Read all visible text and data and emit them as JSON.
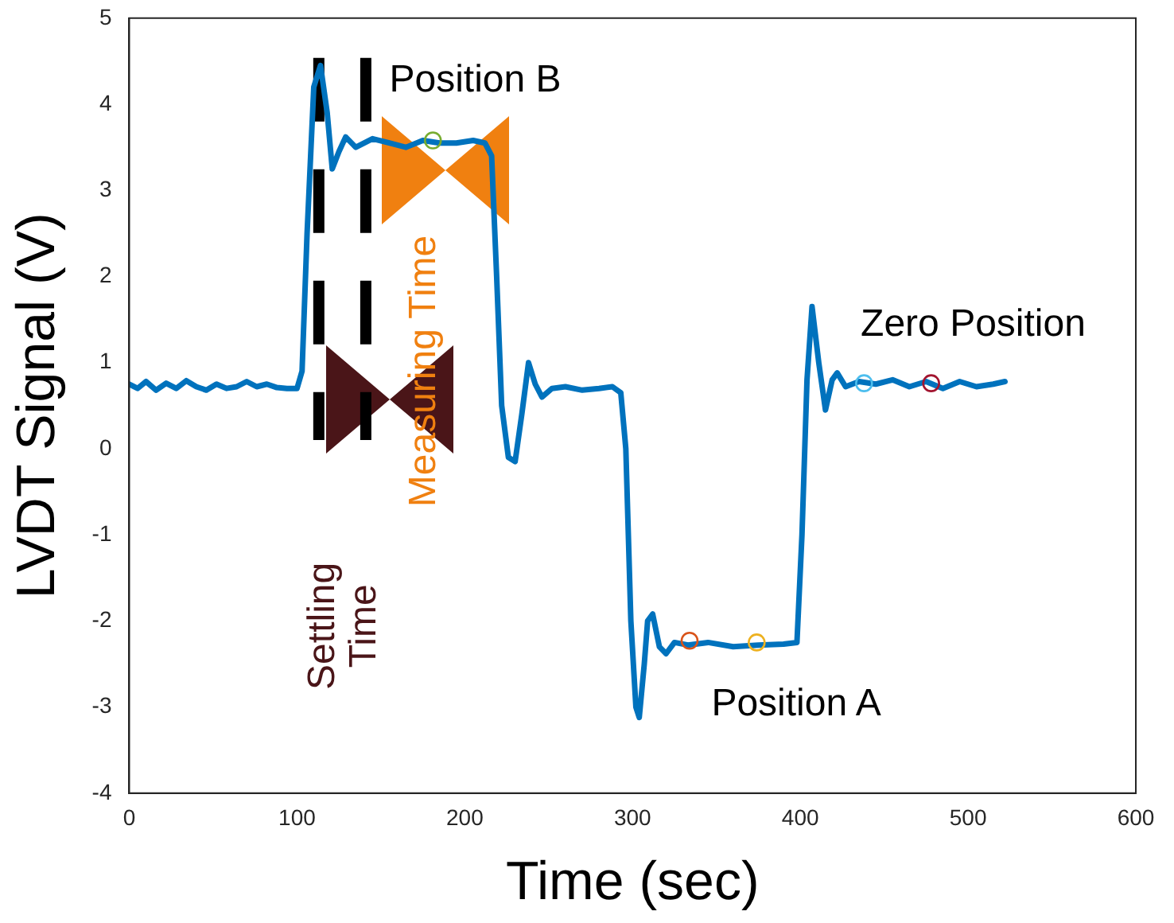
{
  "chart_data": {
    "type": "line",
    "xlabel": "Time (sec)",
    "ylabel": "LVDT Signal (V)",
    "xlim": [
      0,
      600
    ],
    "xticks": [
      0,
      100,
      200,
      300,
      400,
      500,
      600
    ],
    "ylim": [
      -4,
      5
    ],
    "yticks": [
      -4,
      -3,
      -2,
      -1,
      0,
      1,
      2,
      3,
      4,
      5
    ],
    "grid": false,
    "legend": false,
    "series": [
      {
        "color": "#0072bd",
        "x": [
          0,
          5,
          10,
          16,
          22,
          28,
          34,
          40,
          46,
          52,
          58,
          64,
          70,
          76,
          82,
          88,
          94,
          100,
          103,
          106,
          110,
          114,
          118,
          121,
          125,
          129,
          135,
          145,
          155,
          165,
          175,
          185,
          195,
          205,
          212,
          216,
          219,
          222,
          226,
          230,
          234,
          238,
          242,
          246,
          252,
          260,
          270,
          280,
          288,
          293,
          296,
          299,
          302,
          304,
          307,
          309,
          312,
          316,
          320,
          325,
          333,
          345,
          360,
          375,
          390,
          398,
          401,
          404,
          407,
          411,
          415,
          419,
          422,
          427,
          435,
          445,
          455,
          465,
          475,
          485,
          495,
          505,
          515,
          522
        ],
        "values": [
          0.75,
          0.7,
          0.78,
          0.68,
          0.76,
          0.7,
          0.79,
          0.72,
          0.68,
          0.75,
          0.7,
          0.72,
          0.78,
          0.72,
          0.75,
          0.71,
          0.7,
          0.7,
          0.9,
          2.5,
          4.2,
          4.45,
          3.9,
          3.25,
          3.45,
          3.62,
          3.5,
          3.6,
          3.55,
          3.5,
          3.58,
          3.55,
          3.55,
          3.58,
          3.55,
          3.4,
          2.0,
          0.5,
          -0.1,
          -0.15,
          0.4,
          1.0,
          0.75,
          0.6,
          0.7,
          0.72,
          0.68,
          0.7,
          0.72,
          0.65,
          0.0,
          -2.0,
          -3.0,
          -3.12,
          -2.5,
          -2.0,
          -1.92,
          -2.3,
          -2.38,
          -2.25,
          -2.28,
          -2.25,
          -2.3,
          -2.28,
          -2.27,
          -2.25,
          -1.0,
          0.8,
          1.65,
          1.0,
          0.45,
          0.8,
          0.88,
          0.72,
          0.78,
          0.75,
          0.8,
          0.72,
          0.78,
          0.7,
          0.78,
          0.72,
          0.75,
          0.78
        ]
      },
      {
        "type": "scatter",
        "marker": "circle",
        "colors": [
          "#77ac30",
          "#d95319",
          "#edb120",
          "#4dbeee",
          "#a2142f"
        ],
        "x": [
          181,
          334,
          374,
          438,
          478
        ],
        "values": [
          3.58,
          -2.23,
          -2.25,
          0.76,
          0.76
        ]
      }
    ],
    "ref_lines": [
      {
        "axis": "x",
        "value": 113,
        "color": "#000000",
        "line_style": "dashed"
      },
      {
        "axis": "x",
        "value": 141,
        "color": "#000000",
        "line_style": "dashed"
      }
    ],
    "annotations": [
      "Position B",
      "Zero Position",
      "Position A",
      "Measuring Time",
      "Settling Time"
    ]
  }
}
